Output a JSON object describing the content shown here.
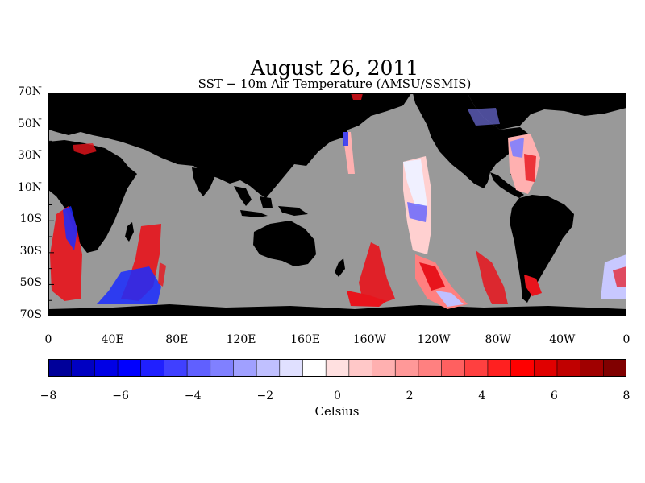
{
  "header": {
    "title": "August 26, 2011",
    "subtitle": "SST − 10m Air Temperature (AMSU/SSMIS)"
  },
  "map": {
    "lat_labels": [
      "70N",
      "50N",
      "30N",
      "10N",
      "10S",
      "30S",
      "50S",
      "70S"
    ],
    "lon_labels": [
      "0",
      "40E",
      "80E",
      "120E",
      "160E",
      "160W",
      "120W",
      "80W",
      "40W",
      "0"
    ],
    "colors": {
      "land": "#000000",
      "no_data": "#999999",
      "warm": "#e8141c",
      "cold": "#1a2cff"
    }
  },
  "colorbar": {
    "unit": "Celsius",
    "range": [
      -8,
      8
    ],
    "tick_labels": [
      "−8",
      "−6",
      "−4",
      "−2",
      "0",
      "2",
      "4",
      "6",
      "8"
    ],
    "colors": [
      "#00009a",
      "#0000c2",
      "#0000e6",
      "#0000ff",
      "#2020ff",
      "#4040ff",
      "#6060ff",
      "#8080ff",
      "#a0a0ff",
      "#c0c0ff",
      "#e0e0ff",
      "#ffffff",
      "#ffe0e0",
      "#ffc8c8",
      "#ffb0b0",
      "#ff9898",
      "#ff8080",
      "#ff6060",
      "#ff4040",
      "#ff2020",
      "#ff0000",
      "#e00000",
      "#c00000",
      "#a00000",
      "#800000"
    ]
  }
}
